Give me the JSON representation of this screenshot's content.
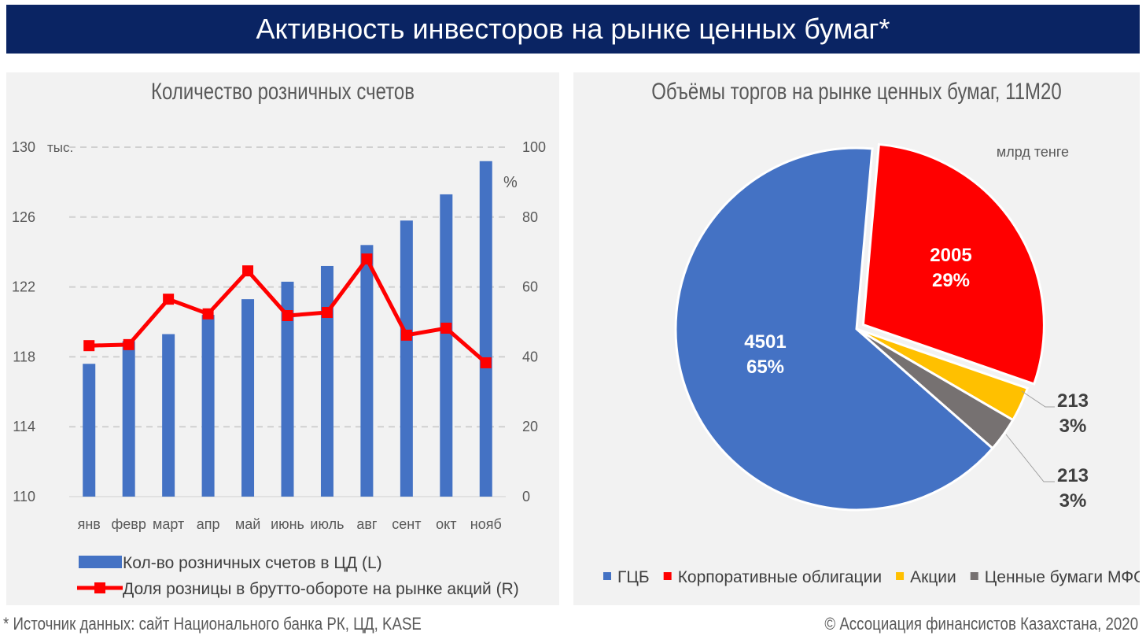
{
  "title": "Активность инвесторов на рынке ценных бумаг*",
  "footer": {
    "source": "* Источник данных: сайт Национального банка РК, ЦД, KASE",
    "copyright": "© Ассоциация финансистов Казахстана, 2020"
  },
  "chart_data": [
    {
      "type": "bar+line",
      "title": "Количество розничных счетов",
      "categories": [
        "янв",
        "февр",
        "март",
        "апр",
        "май",
        "июнь",
        "июль",
        "авг",
        "сент",
        "окт",
        "нояб"
      ],
      "left_unit": "тыс.",
      "right_unit": "%",
      "ylim_left": [
        110,
        130
      ],
      "yticks_left": [
        "110",
        "114",
        "118",
        "122",
        "126",
        "130"
      ],
      "ylim_right": [
        0,
        100
      ],
      "yticks_right": [
        "0",
        "20",
        "40",
        "60",
        "80",
        "100"
      ],
      "grid": true,
      "legend": "bottom",
      "series": [
        {
          "name": "Кол-во розничных счетов в ЦД (L)",
          "kind": "bar",
          "axis": "left",
          "color": "#4472c4",
          "values": [
            117.6,
            118.9,
            119.3,
            120.4,
            121.3,
            122.3,
            123.2,
            124.4,
            125.8,
            127.3,
            129.2
          ]
        },
        {
          "name": "Доля розницы в брутто-обороте на рынке акций (R)",
          "kind": "line",
          "axis": "right",
          "color": "#ff0000",
          "values": [
            43.2,
            43.5,
            56.5,
            52.3,
            64.6,
            51.8,
            52.7,
            68.0,
            46.2,
            48.2,
            38.3
          ]
        }
      ]
    },
    {
      "type": "pie",
      "title": "Объёмы торгов на рынке ценных бумаг, 11М20",
      "unit": "млрд тенге",
      "legend": "bottom",
      "slices": [
        {
          "name": "Корпоративные облигации",
          "value": 2005,
          "percent": "29%",
          "color": "#ff0000"
        },
        {
          "name": "Акции",
          "value": 213,
          "percent": "3%",
          "color": "#ffc000"
        },
        {
          "name": "Ценные бумаги МФО",
          "value": 213,
          "percent": "3%",
          "color": "#767171"
        },
        {
          "name": "ГЦБ",
          "value": 4501,
          "percent": "65%",
          "color": "#4472c4"
        }
      ],
      "legend_order": [
        "ГЦБ",
        "Корпоративные облигации",
        "Акции",
        "Ценные бумаги МФО"
      ]
    }
  ]
}
